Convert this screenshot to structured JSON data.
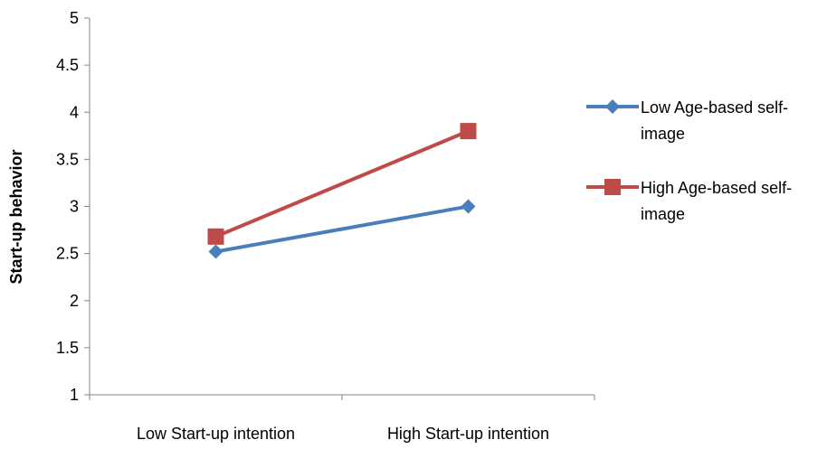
{
  "chart_data": {
    "type": "line",
    "title": "",
    "xlabel": "",
    "ylabel": "Start-up behavior",
    "categories": [
      "Low Start-up intention",
      "High Start-up intention"
    ],
    "ylim": [
      1,
      5
    ],
    "yticks": [
      "1",
      "1.5",
      "2",
      "2.5",
      "3",
      "3.5",
      "4",
      "4.5",
      "5"
    ],
    "grid": false,
    "legend_position": "right",
    "series": [
      {
        "name": "Low Age-based self-image",
        "name_lines": [
          "Low Age-based self-",
          "image"
        ],
        "values": [
          2.52,
          3.0
        ],
        "color": "#4a7ebb",
        "marker": "diamond"
      },
      {
        "name": "High Age-based self-image",
        "name_lines": [
          "High Age-based self-",
          "image"
        ],
        "values": [
          2.68,
          3.8
        ],
        "color": "#be4b48",
        "marker": "square"
      }
    ]
  }
}
